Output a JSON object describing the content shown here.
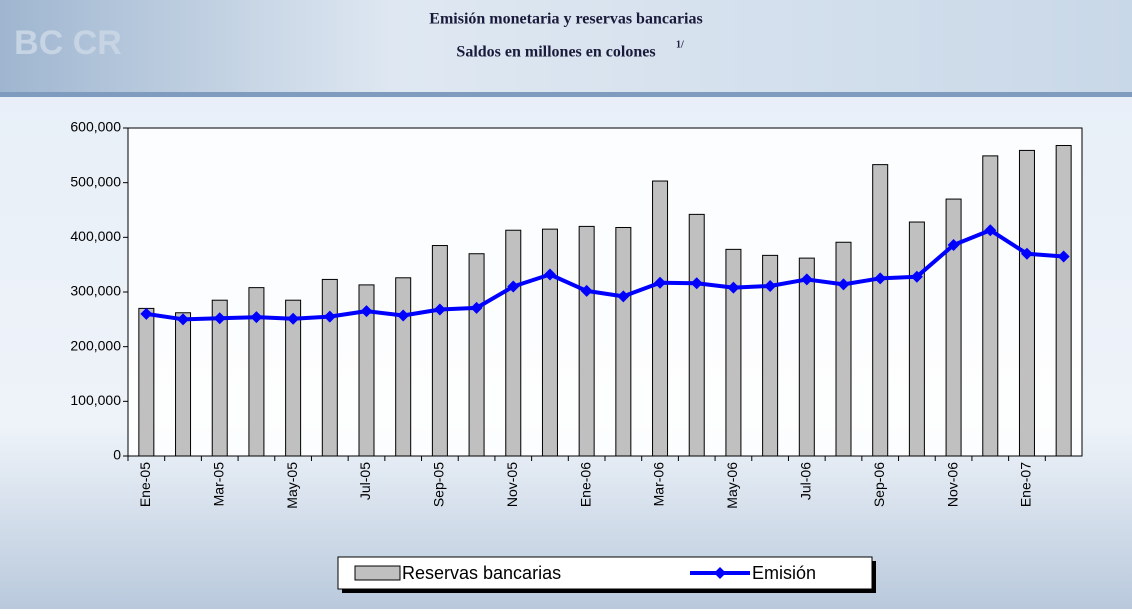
{
  "chart_data": {
    "type": "bar-line",
    "title": "Emisión monetaria y reservas bancarias",
    "subtitle": "Saldos en millones en colones",
    "subtitle_note": "1/",
    "categories": [
      "Ene-05",
      null,
      "Mar-05",
      null,
      "May-05",
      null,
      "Jul-05",
      null,
      "Sep-05",
      null,
      "Nov-05",
      null,
      "Ene-06",
      null,
      "Mar-06",
      null,
      "May-06",
      null,
      "Jul-06",
      null,
      "Sep-06",
      null,
      "Nov-06",
      null,
      "Ene-07",
      null
    ],
    "series": [
      {
        "name": "Reservas bancarias",
        "type": "bar",
        "color": "#c0c0c0",
        "values": [
          270000,
          262000,
          285000,
          308000,
          285000,
          323000,
          313000,
          326000,
          385000,
          370000,
          413000,
          415000,
          420000,
          418000,
          503000,
          442000,
          378000,
          367000,
          362000,
          391000,
          533000,
          428000,
          470000,
          549000,
          559000,
          568000
        ]
      },
      {
        "name": "Emisión",
        "type": "line",
        "color": "#0000ff",
        "values": [
          260000,
          250000,
          252000,
          254000,
          251000,
          255000,
          265000,
          257000,
          268000,
          271000,
          310000,
          332000,
          302000,
          292000,
          317000,
          316000,
          308000,
          311000,
          323000,
          314000,
          325000,
          328000,
          386000,
          413000,
          370000,
          365000
        ]
      }
    ],
    "ylim": [
      0,
      600000
    ],
    "yticks": [
      0,
      {
        "value": 100000,
        "label": "100,000"
      },
      {
        "value": 200000,
        "label": "200,000"
      },
      {
        "value": 300000,
        "label": "300,000"
      },
      {
        "value": 400000,
        "label": "400,000"
      },
      {
        "value": 500000,
        "label": "500,000"
      },
      {
        "value": 600000,
        "label": "600,000"
      }
    ],
    "legend": "bottom"
  }
}
